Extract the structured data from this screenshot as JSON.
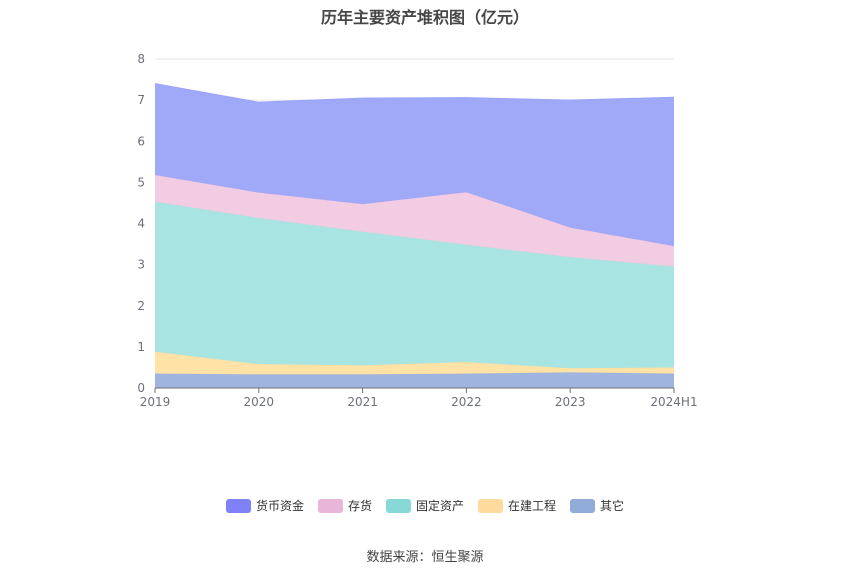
{
  "chart_data": {
    "type": "area",
    "stacked": true,
    "title": "历年主要资产堆积图（亿元）",
    "x": [
      "2019",
      "2020",
      "2021",
      "2022",
      "2023",
      "2024H1"
    ],
    "ylim": [
      0,
      8
    ],
    "yticks": [
      0,
      1,
      2,
      3,
      4,
      5,
      6,
      7,
      8
    ],
    "grid": true,
    "legend_position": "bottom",
    "series": [
      {
        "name": "其它",
        "color": "#9ab0dd",
        "values": [
          0.35,
          0.33,
          0.33,
          0.35,
          0.38,
          0.35
        ]
      },
      {
        "name": "在建工程",
        "color": "#ffe0a0",
        "values": [
          0.53,
          0.25,
          0.22,
          0.28,
          0.1,
          0.15
        ]
      },
      {
        "name": "固定资产",
        "color": "#a3e3e0",
        "values": [
          3.65,
          3.55,
          3.25,
          2.85,
          2.7,
          2.45
        ]
      },
      {
        "name": "存货",
        "color": "#f0c9e0",
        "values": [
          0.65,
          0.62,
          0.67,
          1.28,
          0.72,
          0.5
        ]
      },
      {
        "name": "货币资金",
        "color": "#9ba3f8",
        "values": [
          2.22,
          2.2,
          2.58,
          2.3,
          3.1,
          3.62
        ]
      }
    ],
    "legend": [
      {
        "name": "货币资金",
        "color": "#8080f7"
      },
      {
        "name": "存货",
        "color": "#e9b6d9"
      },
      {
        "name": "固定资产",
        "color": "#88d8d8"
      },
      {
        "name": "在建工程",
        "color": "#fddb9c"
      },
      {
        "name": "其它",
        "color": "#92acda"
      }
    ]
  },
  "source": "数据来源：恒生聚源"
}
